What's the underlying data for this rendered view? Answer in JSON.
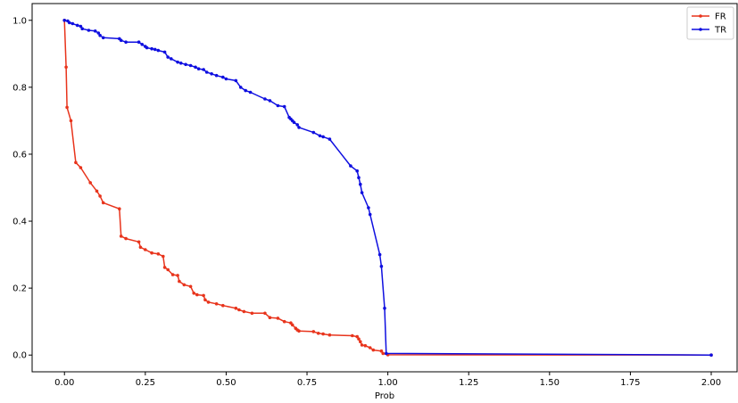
{
  "chart_data": {
    "type": "line",
    "title": "",
    "xlabel": "Prob",
    "ylabel": "",
    "xlim": [
      -0.1,
      2.08
    ],
    "ylim": [
      -0.05,
      1.05
    ],
    "xticks": [
      0.0,
      0.25,
      0.5,
      0.75,
      1.0,
      1.25,
      1.5,
      1.75,
      2.0
    ],
    "xtick_labels": [
      "0.00",
      "0.25",
      "0.50",
      "0.75",
      "1.00",
      "1.25",
      "1.50",
      "1.75",
      "2.00"
    ],
    "yticks": [
      0.0,
      0.2,
      0.4,
      0.6,
      0.8,
      1.0
    ],
    "ytick_labels": [
      "0.0",
      "0.2",
      "0.4",
      "0.6",
      "0.8",
      "1.0"
    ],
    "grid": false,
    "legend_position": "top-right",
    "series": [
      {
        "name": "FR",
        "color": "#e8341c",
        "marker": "dot",
        "points": [
          [
            0.0,
            1.0
          ],
          [
            0.005,
            0.86
          ],
          [
            0.008,
            0.74
          ],
          [
            0.02,
            0.7
          ],
          [
            0.035,
            0.575
          ],
          [
            0.05,
            0.56
          ],
          [
            0.08,
            0.515
          ],
          [
            0.1,
            0.49
          ],
          [
            0.11,
            0.475
          ],
          [
            0.12,
            0.455
          ],
          [
            0.17,
            0.437
          ],
          [
            0.175,
            0.355
          ],
          [
            0.19,
            0.348
          ],
          [
            0.23,
            0.338
          ],
          [
            0.235,
            0.322
          ],
          [
            0.25,
            0.315
          ],
          [
            0.27,
            0.305
          ],
          [
            0.29,
            0.302
          ],
          [
            0.305,
            0.295
          ],
          [
            0.31,
            0.262
          ],
          [
            0.32,
            0.255
          ],
          [
            0.335,
            0.24
          ],
          [
            0.35,
            0.238
          ],
          [
            0.355,
            0.22
          ],
          [
            0.37,
            0.21
          ],
          [
            0.39,
            0.205
          ],
          [
            0.4,
            0.185
          ],
          [
            0.41,
            0.18
          ],
          [
            0.43,
            0.178
          ],
          [
            0.435,
            0.165
          ],
          [
            0.445,
            0.158
          ],
          [
            0.47,
            0.153
          ],
          [
            0.49,
            0.148
          ],
          [
            0.53,
            0.14
          ],
          [
            0.54,
            0.135
          ],
          [
            0.555,
            0.13
          ],
          [
            0.58,
            0.125
          ],
          [
            0.62,
            0.125
          ],
          [
            0.635,
            0.112
          ],
          [
            0.66,
            0.11
          ],
          [
            0.68,
            0.1
          ],
          [
            0.7,
            0.096
          ],
          [
            0.705,
            0.09
          ],
          [
            0.715,
            0.08
          ],
          [
            0.72,
            0.075
          ],
          [
            0.725,
            0.072
          ],
          [
            0.77,
            0.07
          ],
          [
            0.785,
            0.065
          ],
          [
            0.8,
            0.063
          ],
          [
            0.82,
            0.06
          ],
          [
            0.89,
            0.058
          ],
          [
            0.905,
            0.055
          ],
          [
            0.91,
            0.048
          ],
          [
            0.915,
            0.04
          ],
          [
            0.92,
            0.03
          ],
          [
            0.93,
            0.028
          ],
          [
            0.945,
            0.022
          ],
          [
            0.955,
            0.015
          ],
          [
            0.98,
            0.012
          ],
          [
            0.985,
            0.005
          ],
          [
            1.0,
            0.001
          ],
          [
            2.0,
            0.0
          ]
        ]
      },
      {
        "name": "TR",
        "color": "#0f0fe0",
        "marker": "dot",
        "points": [
          [
            0.0,
            1.0
          ],
          [
            0.01,
            0.998
          ],
          [
            0.015,
            0.993
          ],
          [
            0.025,
            0.99
          ],
          [
            0.04,
            0.985
          ],
          [
            0.05,
            0.982
          ],
          [
            0.055,
            0.975
          ],
          [
            0.075,
            0.97
          ],
          [
            0.095,
            0.968
          ],
          [
            0.105,
            0.962
          ],
          [
            0.11,
            0.955
          ],
          [
            0.12,
            0.948
          ],
          [
            0.17,
            0.945
          ],
          [
            0.175,
            0.94
          ],
          [
            0.19,
            0.935
          ],
          [
            0.23,
            0.935
          ],
          [
            0.24,
            0.928
          ],
          [
            0.25,
            0.922
          ],
          [
            0.255,
            0.918
          ],
          [
            0.27,
            0.915
          ],
          [
            0.28,
            0.913
          ],
          [
            0.29,
            0.91
          ],
          [
            0.31,
            0.905
          ],
          [
            0.32,
            0.89
          ],
          [
            0.33,
            0.885
          ],
          [
            0.35,
            0.875
          ],
          [
            0.36,
            0.872
          ],
          [
            0.375,
            0.868
          ],
          [
            0.39,
            0.865
          ],
          [
            0.405,
            0.86
          ],
          [
            0.415,
            0.855
          ],
          [
            0.43,
            0.853
          ],
          [
            0.44,
            0.845
          ],
          [
            0.455,
            0.84
          ],
          [
            0.47,
            0.835
          ],
          [
            0.49,
            0.83
          ],
          [
            0.5,
            0.825
          ],
          [
            0.53,
            0.82
          ],
          [
            0.545,
            0.8
          ],
          [
            0.56,
            0.79
          ],
          [
            0.575,
            0.785
          ],
          [
            0.62,
            0.765
          ],
          [
            0.635,
            0.76
          ],
          [
            0.66,
            0.745
          ],
          [
            0.68,
            0.742
          ],
          [
            0.695,
            0.71
          ],
          [
            0.7,
            0.705
          ],
          [
            0.705,
            0.7
          ],
          [
            0.71,
            0.695
          ],
          [
            0.72,
            0.688
          ],
          [
            0.725,
            0.68
          ],
          [
            0.77,
            0.665
          ],
          [
            0.79,
            0.655
          ],
          [
            0.8,
            0.652
          ],
          [
            0.82,
            0.645
          ],
          [
            0.885,
            0.565
          ],
          [
            0.905,
            0.55
          ],
          [
            0.91,
            0.53
          ],
          [
            0.915,
            0.51
          ],
          [
            0.92,
            0.485
          ],
          [
            0.94,
            0.44
          ],
          [
            0.945,
            0.42
          ],
          [
            0.975,
            0.3
          ],
          [
            0.98,
            0.265
          ],
          [
            0.99,
            0.14
          ],
          [
            0.995,
            0.005
          ],
          [
            2.0,
            0.0
          ]
        ]
      }
    ]
  }
}
